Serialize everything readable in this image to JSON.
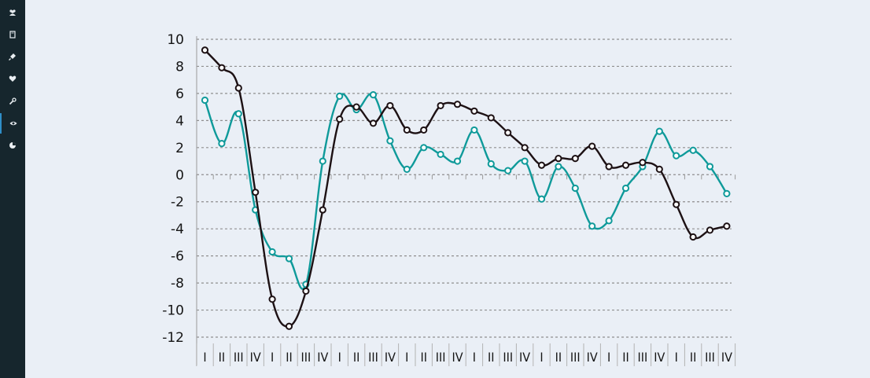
{
  "sidebar": {
    "items": [
      {
        "icon": "users-icon"
      },
      {
        "icon": "book-icon"
      },
      {
        "icon": "plug-icon"
      },
      {
        "icon": "heartbeat-icon"
      },
      {
        "icon": "wrench-icon"
      },
      {
        "icon": "eye-icon",
        "active": true
      },
      {
        "icon": "pie-chart-icon"
      }
    ]
  },
  "chart_data": {
    "type": "line",
    "ylim": [
      -12,
      10
    ],
    "yticks": [
      10,
      8,
      6,
      4,
      2,
      0,
      -2,
      -4,
      -6,
      -8,
      -10,
      -12
    ],
    "grid": "horizontal dashed",
    "categories": [
      "I",
      "II",
      "III",
      "IV",
      "I",
      "II",
      "III",
      "IV",
      "I",
      "II",
      "III",
      "IV",
      "I",
      "II",
      "III",
      "IV",
      "I",
      "II",
      "III",
      "IV",
      "I",
      "II",
      "III",
      "IV",
      "I",
      "II",
      "III",
      "IV",
      "I",
      "II",
      "III",
      "IV"
    ],
    "series": [
      {
        "color": "#0f9a9a",
        "values": [
          5.5,
          2.3,
          4.5,
          -2.6,
          -5.7,
          -6.2,
          -8.1,
          1.0,
          5.8,
          4.8,
          5.9,
          2.5,
          0.4,
          2.0,
          1.5,
          1.0,
          3.3,
          0.8,
          0.3,
          1.0,
          -1.8,
          0.6,
          -1.0,
          -3.8,
          -3.4,
          -1.0,
          0.6,
          3.2,
          1.4,
          1.8,
          0.6,
          -1.4
        ]
      },
      {
        "color": "#1d1114",
        "values": [
          9.2,
          7.9,
          6.4,
          -1.3,
          -9.2,
          -11.2,
          -8.6,
          -2.6,
          4.1,
          5.0,
          3.8,
          5.1,
          3.3,
          3.3,
          5.1,
          5.2,
          4.7,
          4.2,
          3.1,
          2.0,
          0.7,
          1.2,
          1.2,
          2.1,
          0.6,
          0.7,
          0.9,
          0.4,
          -2.2,
          -4.6,
          -4.1,
          -3.8
        ]
      }
    ]
  }
}
